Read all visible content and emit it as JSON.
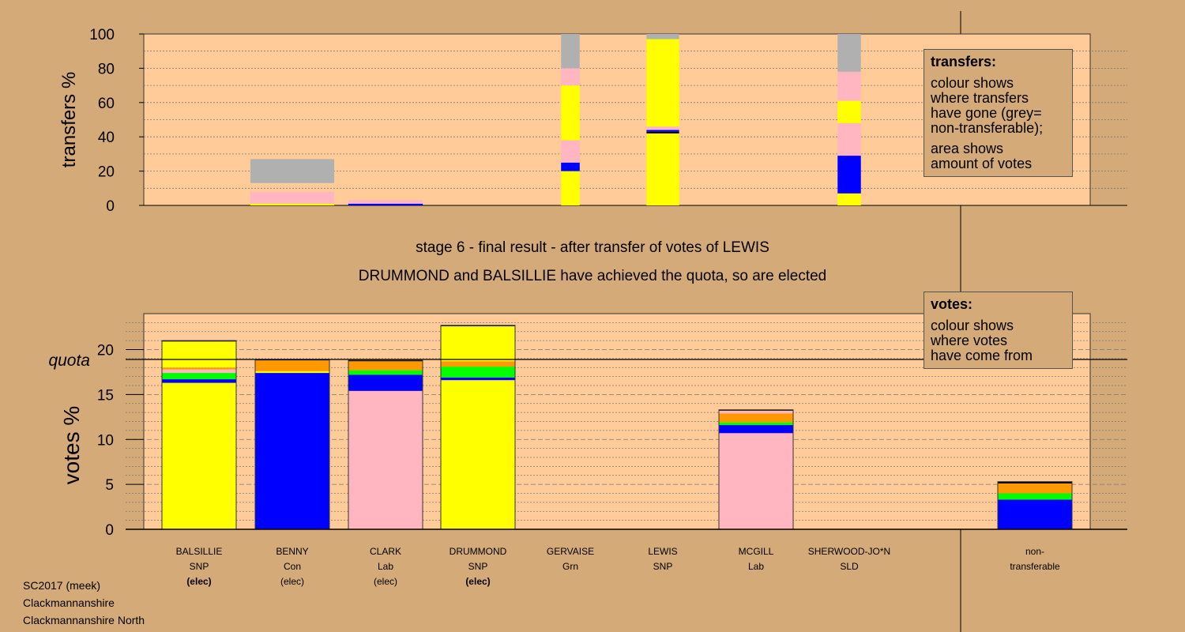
{
  "header": {
    "stage_title": "stage 6 - final result - after transfer of votes of LEWIS",
    "stage_subtitle": "DRUMMOND and BALSILLIE have achieved the quota, so are elected"
  },
  "colors": {
    "SNP": "#ffff00",
    "Con": "#0000ff",
    "Lab": "#ffb6c1",
    "Grn": "#00ff00",
    "SLD": "#ff9900",
    "other": "#000000",
    "nontransferable": "#b0b0b0",
    "panel": "#ffcc99",
    "background": "#d4aa78"
  },
  "candidates": [
    {
      "name": "BALSILLIE",
      "party": "SNP",
      "status": "(elec)",
      "status_bold": true
    },
    {
      "name": "BENNY",
      "party": "Con",
      "status": "(elec)",
      "status_bold": false
    },
    {
      "name": "CLARK",
      "party": "Lab",
      "status": "(elec)",
      "status_bold": false
    },
    {
      "name": "DRUMMOND",
      "party": "SNP",
      "status": "(elec)",
      "status_bold": true
    },
    {
      "name": "GERVAISE",
      "party": "Grn",
      "status": "",
      "status_bold": false
    },
    {
      "name": "LEWIS",
      "party": "SNP",
      "status": "",
      "status_bold": false
    },
    {
      "name": "MCGILL",
      "party": "Lab",
      "status": "",
      "status_bold": false
    },
    {
      "name": "SHERWOOD-JO*N",
      "party": "SLD",
      "status": "",
      "status_bold": false
    }
  ],
  "nontransferable_label": [
    "non-",
    "transferable"
  ],
  "legend_transfers": {
    "title": "transfers:",
    "lines1": [
      "colour shows",
      "where transfers",
      "have gone (grey=",
      "non-transferable);"
    ],
    "lines2": [
      "area shows",
      "amount of votes"
    ]
  },
  "legend_votes": {
    "title": "votes:",
    "lines": [
      "colour shows",
      "where votes",
      "have come from"
    ]
  },
  "footer": [
    "SC2017 (meek)",
    "Clackmannanshire",
    "Clackmannanshire North"
  ],
  "chart_data": [
    {
      "type": "bar",
      "name": "transfers",
      "ylabel": "transfers %",
      "ylim": [
        0,
        100
      ],
      "yticks": [
        0,
        20,
        40,
        60,
        80,
        100
      ],
      "bars": [
        {
          "candidate": "BENNY",
          "width": 0.9,
          "segments": [
            [
              "SNP",
              1
            ],
            [
              "Lab",
              7
            ],
            [
              "background",
              5
            ],
            [
              "nontransferable",
              14
            ]
          ]
        },
        {
          "candidate": "CLARK",
          "width": 0.8,
          "segments": [
            [
              "Con",
              1
            ],
            [
              "Lab",
              2
            ]
          ]
        },
        {
          "candidate": "GERVAISE",
          "width": 0.2,
          "segments": [
            [
              "SNP",
              20
            ],
            [
              "Con",
              5
            ],
            [
              "Lab",
              13
            ],
            [
              "SNP",
              32
            ],
            [
              "Lab",
              10
            ],
            [
              "nontransferable",
              20
            ]
          ]
        },
        {
          "candidate": "LEWIS",
          "width": 0.35,
          "segments": [
            [
              "SNP",
              42
            ],
            [
              "other",
              1
            ],
            [
              "Con",
              1
            ],
            [
              "Lab",
              2
            ],
            [
              "SNP",
              51
            ],
            [
              "nontransferable",
              3
            ]
          ]
        },
        {
          "candidate": "SHERWOOD-JO*N",
          "width": 0.25,
          "segments": [
            [
              "SNP",
              7
            ],
            [
              "Con",
              22
            ],
            [
              "Lab",
              19
            ],
            [
              "SNP",
              13
            ],
            [
              "Lab",
              17
            ],
            [
              "nontransferable",
              22
            ]
          ]
        }
      ]
    },
    {
      "type": "bar",
      "name": "votes",
      "ylabel": "votes %",
      "ylim": [
        0,
        24
      ],
      "yticks": [
        0,
        5,
        10,
        15,
        20
      ],
      "quota": 18.9,
      "quota_label": "quota",
      "bars": [
        {
          "candidate": "BALSILLIE",
          "segments": [
            [
              "SNP",
              16.3
            ],
            [
              "Con",
              0.4
            ],
            [
              "Grn",
              0.7
            ],
            [
              "Lab",
              0.4
            ],
            [
              "SLD",
              0.2
            ],
            [
              "SNP",
              2.9
            ],
            [
              "other",
              0.1
            ]
          ]
        },
        {
          "candidate": "BENNY",
          "segments": [
            [
              "Con",
              17.4
            ],
            [
              "SNP",
              0.2
            ],
            [
              "SLD",
              1.2
            ],
            [
              "other",
              0.1
            ]
          ]
        },
        {
          "candidate": "CLARK",
          "segments": [
            [
              "Lab",
              15.4
            ],
            [
              "Con",
              1.8
            ],
            [
              "Grn",
              0.5
            ],
            [
              "SLD",
              1.0
            ],
            [
              "other",
              0.1
            ]
          ]
        },
        {
          "candidate": "DRUMMOND",
          "segments": [
            [
              "SNP",
              16.6
            ],
            [
              "Con",
              0.3
            ],
            [
              "Grn",
              1.2
            ],
            [
              "SLD",
              0.6
            ],
            [
              "SNP",
              3.9
            ],
            [
              "other",
              0.1
            ]
          ]
        },
        {
          "candidate": "GERVAISE",
          "segments": []
        },
        {
          "candidate": "LEWIS",
          "segments": []
        },
        {
          "candidate": "MCGILL",
          "segments": [
            [
              "Lab",
              10.7
            ],
            [
              "Con",
              0.9
            ],
            [
              "Grn",
              0.3
            ],
            [
              "SLD",
              1.0
            ],
            [
              "Lab",
              0.3
            ],
            [
              "other",
              0.1
            ]
          ]
        },
        {
          "candidate": "SHERWOOD-JO*N",
          "segments": []
        },
        {
          "candidate": "non-transferable",
          "segments": [
            [
              "Con",
              3.3
            ],
            [
              "Grn",
              0.7
            ],
            [
              "SLD",
              1.1
            ],
            [
              "other",
              0.2
            ]
          ]
        }
      ]
    }
  ]
}
